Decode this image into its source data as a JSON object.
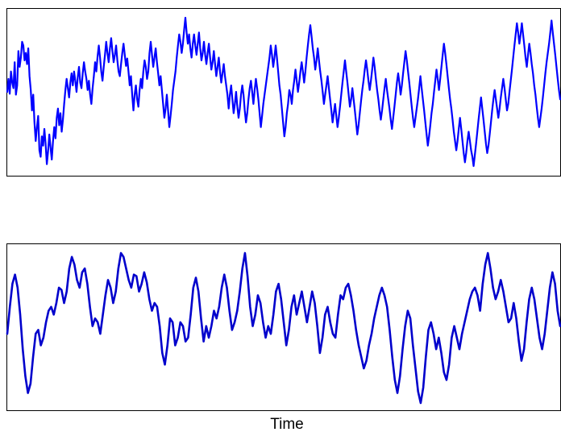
{
  "chart_data": [
    {
      "type": "line",
      "title": "",
      "xlabel": "",
      "ylabel": "",
      "grid": false,
      "x_ticks": "none",
      "y_ticks": "none",
      "series": [
        {
          "color": "#0000ff",
          "values": [
            0.08,
            0.22,
            0.06,
            0.3,
            0.18,
            0.12,
            0.4,
            0.05,
            0.15,
            0.52,
            0.35,
            0.45,
            0.62,
            0.58,
            0.42,
            0.5,
            0.38,
            0.55,
            0.25,
            0.1,
            -0.12,
            0.05,
            -0.25,
            -0.45,
            -0.3,
            -0.18,
            -0.55,
            -0.62,
            -0.4,
            -0.5,
            -0.32,
            -0.48,
            -0.7,
            -0.56,
            -0.38,
            -0.52,
            -0.65,
            -0.45,
            -0.3,
            -0.42,
            -0.2,
            -0.1,
            -0.28,
            -0.15,
            -0.35,
            -0.22,
            -0.05,
            0.1,
            0.22,
            0.12,
            0.02,
            0.18,
            0.28,
            0.15,
            0.3,
            0.2,
            0.08,
            0.24,
            0.35,
            0.18,
            0.12,
            0.28,
            0.4,
            0.3,
            0.22,
            0.1,
            0.2,
            0.05,
            -0.05,
            0.12,
            0.25,
            0.4,
            0.3,
            0.46,
            0.58,
            0.45,
            0.3,
            0.2,
            0.35,
            0.48,
            0.62,
            0.5,
            0.4,
            0.55,
            0.66,
            0.52,
            0.4,
            0.48,
            0.58,
            0.42,
            0.3,
            0.25,
            0.38,
            0.5,
            0.6,
            0.48,
            0.36,
            0.44,
            0.3,
            0.15,
            0.25,
            0.05,
            -0.12,
            0.05,
            0.15,
            0.0,
            -0.08,
            0.1,
            0.22,
            0.12,
            0.3,
            0.42,
            0.35,
            0.22,
            0.3,
            0.5,
            0.62,
            0.48,
            0.35,
            0.45,
            0.55,
            0.4,
            0.28,
            0.15,
            0.25,
            0.1,
            -0.05,
            -0.2,
            -0.1,
            0.05,
            -0.12,
            -0.3,
            -0.18,
            -0.05,
            0.1,
            0.2,
            0.3,
            0.45,
            0.58,
            0.7,
            0.62,
            0.5,
            0.6,
            0.75,
            0.88,
            0.72,
            0.6,
            0.7,
            0.55,
            0.45,
            0.6,
            0.7,
            0.58,
            0.48,
            0.6,
            0.72,
            0.55,
            0.42,
            0.5,
            0.62,
            0.48,
            0.38,
            0.5,
            0.6,
            0.45,
            0.32,
            0.4,
            0.52,
            0.38,
            0.25,
            0.35,
            0.45,
            0.3,
            0.18,
            0.28,
            0.38,
            0.25,
            0.15,
            0.05,
            -0.1,
            0.05,
            0.15,
            0.0,
            -0.15,
            -0.05,
            0.08,
            -0.08,
            -0.2,
            -0.1,
            0.05,
            0.15,
            0.05,
            -0.12,
            -0.25,
            -0.15,
            0.0,
            0.12,
            0.2,
            0.08,
            -0.05,
            0.1,
            0.22,
            0.12,
            0.0,
            -0.15,
            -0.3,
            -0.18,
            -0.05,
            0.05,
            0.15,
            0.25,
            0.35,
            0.45,
            0.58,
            0.48,
            0.35,
            0.45,
            0.58,
            0.45,
            0.3,
            0.15,
            0.05,
            -0.1,
            -0.25,
            -0.4,
            -0.3,
            -0.15,
            -0.05,
            0.1,
            0.05,
            -0.05,
            0.1,
            0.2,
            0.32,
            0.2,
            0.08,
            0.18,
            0.3,
            0.4,
            0.3,
            0.18,
            0.3,
            0.45,
            0.58,
            0.7,
            0.8,
            0.68,
            0.55,
            0.45,
            0.32,
            0.42,
            0.55,
            0.42,
            0.3,
            0.2,
            0.08,
            -0.05,
            0.05,
            0.15,
            0.25,
            0.12,
            0.0,
            -0.12,
            -0.25,
            -0.15,
            -0.05,
            -0.18,
            -0.3,
            -0.2,
            -0.08,
            0.05,
            0.18,
            0.3,
            0.42,
            0.3,
            0.18,
            0.05,
            -0.08,
            0.0,
            0.12,
            0.0,
            -0.12,
            -0.25,
            -0.38,
            -0.28,
            -0.15,
            -0.02,
            0.1,
            0.2,
            0.32,
            0.42,
            0.32,
            0.2,
            0.1,
            0.2,
            0.32,
            0.45,
            0.35,
            0.22,
            0.1,
            0.0,
            -0.12,
            -0.22,
            -0.12,
            0.0,
            0.12,
            0.22,
            0.1,
            0.0,
            -0.1,
            -0.22,
            -0.32,
            -0.2,
            -0.08,
            0.05,
            0.18,
            0.28,
            0.18,
            0.05,
            0.15,
            0.28,
            0.4,
            0.52,
            0.42,
            0.3,
            0.18,
            0.05,
            -0.08,
            -0.2,
            -0.3,
            -0.2,
            -0.1,
            0.0,
            0.12,
            0.25,
            0.12,
            0.0,
            -0.12,
            -0.25,
            -0.38,
            -0.5,
            -0.4,
            -0.28,
            -0.15,
            -0.05,
            0.08,
            0.2,
            0.32,
            0.22,
            0.1,
            0.22,
            0.35,
            0.48,
            0.6,
            0.5,
            0.38,
            0.25,
            0.12,
            0.0,
            -0.1,
            -0.22,
            -0.35,
            -0.45,
            -0.55,
            -0.45,
            -0.32,
            -0.2,
            -0.32,
            -0.45,
            -0.58,
            -0.68,
            -0.58,
            -0.45,
            -0.35,
            -0.45,
            -0.55,
            -0.62,
            -0.72,
            -0.6,
            -0.48,
            -0.35,
            -0.22,
            -0.1,
            0.02,
            -0.1,
            -0.22,
            -0.35,
            -0.48,
            -0.58,
            -0.5,
            -0.38,
            -0.25,
            -0.12,
            0.0,
            0.1,
            0.0,
            -0.1,
            -0.2,
            -0.1,
            0.02,
            0.12,
            0.22,
            0.12,
            0.0,
            -0.12,
            -0.05,
            0.08,
            0.2,
            0.32,
            0.45,
            0.58,
            0.7,
            0.82,
            0.72,
            0.6,
            0.7,
            0.82,
            0.7,
            0.58,
            0.45,
            0.35,
            0.48,
            0.6,
            0.5,
            0.38,
            0.28,
            0.15,
            0.05,
            -0.08,
            -0.2,
            -0.3,
            -0.2,
            -0.1,
            0.02,
            0.15,
            0.28,
            0.4,
            0.5,
            0.6,
            0.72,
            0.85,
            0.72,
            0.6,
            0.48,
            0.35,
            0.22,
            0.1,
            0.0
          ],
          "x_range": [
            0,
            1
          ]
        }
      ]
    },
    {
      "type": "line",
      "title": "",
      "xlabel": "Time",
      "ylabel": "",
      "grid": false,
      "x_ticks": "none",
      "y_ticks": "none",
      "series": [
        {
          "color": "#0000cc",
          "values": [
            -0.05,
            0.3,
            0.6,
            0.72,
            0.55,
            0.2,
            -0.25,
            -0.6,
            -0.82,
            -0.7,
            -0.35,
            -0.05,
            0.0,
            -0.2,
            -0.1,
            0.1,
            0.25,
            0.3,
            0.2,
            0.35,
            0.55,
            0.52,
            0.35,
            0.5,
            0.8,
            0.95,
            0.85,
            0.65,
            0.55,
            0.75,
            0.8,
            0.6,
            0.3,
            0.05,
            0.15,
            0.1,
            -0.05,
            0.2,
            0.45,
            0.65,
            0.55,
            0.35,
            0.5,
            0.8,
            1.0,
            0.95,
            0.8,
            0.65,
            0.55,
            0.72,
            0.7,
            0.5,
            0.6,
            0.75,
            0.62,
            0.4,
            0.25,
            0.35,
            0.3,
            0.05,
            -0.3,
            -0.45,
            -0.2,
            0.15,
            0.1,
            -0.2,
            -0.1,
            0.1,
            0.05,
            -0.15,
            -0.1,
            0.2,
            0.55,
            0.68,
            0.5,
            0.15,
            -0.15,
            0.05,
            -0.1,
            0.05,
            0.25,
            0.15,
            0.3,
            0.55,
            0.72,
            0.55,
            0.25,
            0.0,
            0.1,
            0.25,
            0.5,
            0.8,
            1.0,
            0.7,
            0.3,
            0.05,
            0.2,
            0.45,
            0.35,
            0.1,
            -0.1,
            0.05,
            -0.05,
            0.2,
            0.5,
            0.6,
            0.4,
            0.1,
            -0.2,
            0.0,
            0.3,
            0.45,
            0.2,
            0.35,
            0.5,
            0.3,
            0.1,
            0.3,
            0.5,
            0.35,
            0.05,
            -0.3,
            -0.1,
            0.2,
            0.3,
            0.1,
            -0.05,
            -0.1,
            0.2,
            0.45,
            0.4,
            0.55,
            0.6,
            0.45,
            0.25,
            0.0,
            -0.2,
            -0.35,
            -0.5,
            -0.4,
            -0.2,
            -0.05,
            0.15,
            0.3,
            0.45,
            0.55,
            0.45,
            0.3,
            0.0,
            -0.35,
            -0.65,
            -0.82,
            -0.6,
            -0.25,
            0.05,
            0.25,
            0.15,
            -0.2,
            -0.5,
            -0.8,
            -0.95,
            -0.75,
            -0.35,
            0.0,
            0.1,
            -0.05,
            -0.25,
            -0.1,
            -0.3,
            -0.55,
            -0.65,
            -0.45,
            -0.1,
            0.05,
            -0.1,
            -0.25,
            -0.05,
            0.1,
            0.25,
            0.4,
            0.5,
            0.55,
            0.45,
            0.25,
            0.6,
            0.85,
            1.0,
            0.8,
            0.55,
            0.4,
            0.5,
            0.65,
            0.5,
            0.3,
            0.1,
            0.15,
            0.35,
            0.15,
            -0.15,
            -0.4,
            -0.25,
            0.1,
            0.4,
            0.55,
            0.4,
            0.15,
            -0.1,
            -0.25,
            -0.05,
            0.25,
            0.55,
            0.75,
            0.6,
            0.25,
            0.05
          ]
        }
      ]
    }
  ],
  "figure": {
    "xlabel": "Time"
  }
}
